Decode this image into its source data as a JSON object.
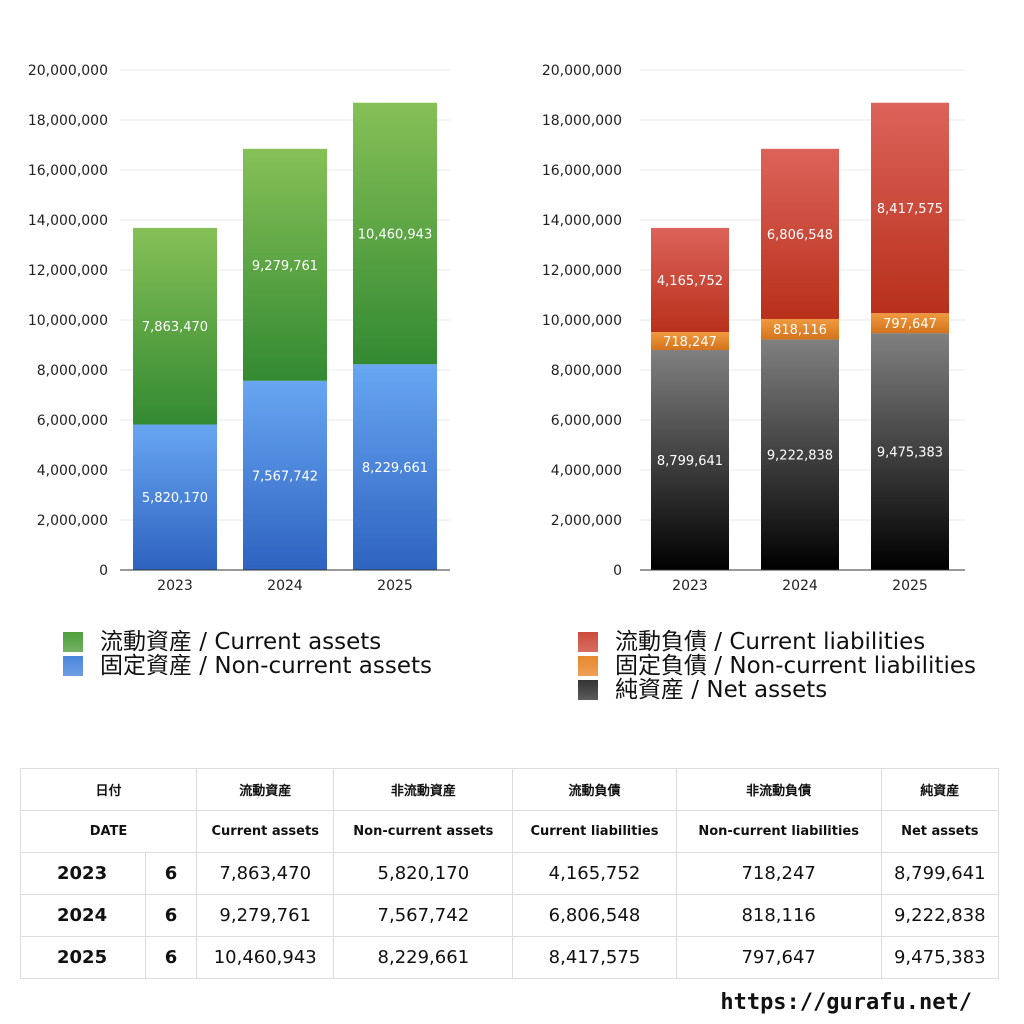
{
  "chart_data": [
    {
      "type": "bar",
      "stacked": true,
      "categories": [
        "2023",
        "2024",
        "2025"
      ],
      "ylim": [
        0,
        20000000
      ],
      "yticks": [
        "0",
        "2,000,000",
        "4,000,000",
        "6,000,000",
        "8,000,000",
        "10,000,000",
        "12,000,000",
        "14,000,000",
        "16,000,000",
        "18,000,000",
        "20,000,000"
      ],
      "grid": true,
      "legend_placement": "bottom",
      "series": [
        {
          "name": "固定資産 / Non-current assets",
          "values": [
            5820170,
            7567742,
            8229661
          ],
          "labels": [
            "5,820,170",
            "7,567,742",
            "8,229,661"
          ],
          "color_top": "#68a6f2",
          "color_bottom": "#2e63c0"
        },
        {
          "name": "流動資産 / Current assets",
          "values": [
            7863470,
            9279761,
            10460943
          ],
          "labels": [
            "7,863,470",
            "9,279,761",
            "10,460,943"
          ],
          "color_top": "#86c057",
          "color_bottom": "#338a32"
        }
      ]
    },
    {
      "type": "bar",
      "stacked": true,
      "categories": [
        "2023",
        "2024",
        "2025"
      ],
      "ylim": [
        0,
        20000000
      ],
      "yticks": [
        "0",
        "2,000,000",
        "4,000,000",
        "6,000,000",
        "8,000,000",
        "10,000,000",
        "12,000,000",
        "14,000,000",
        "16,000,000",
        "18,000,000",
        "20,000,000"
      ],
      "grid": true,
      "legend_placement": "bottom",
      "series": [
        {
          "name": "純資産 / Net assets",
          "values": [
            8799641,
            9222838,
            9475383
          ],
          "labels": [
            "8,799,641",
            "9,222,838",
            "9,475,383"
          ],
          "color_top": "#808080",
          "color_bottom": "#000000"
        },
        {
          "name": "固定負債 / Non-current liabilities",
          "values": [
            718247,
            818116,
            797647
          ],
          "labels": [
            "718,247",
            "818,116",
            "797,647"
          ],
          "color_top": "#f09a40",
          "color_bottom": "#d4731c"
        },
        {
          "name": "流動負債 / Current liabilities",
          "values": [
            4165752,
            6806548,
            8417575
          ],
          "labels": [
            "4,165,752",
            "6,806,548",
            "8,417,575"
          ],
          "color_top": "#dc635a",
          "color_bottom": "#b8301b"
        }
      ]
    }
  ],
  "legend_left": [
    {
      "label": "流動資産 / Current assets",
      "color": "#4f9e3c"
    },
    {
      "label": "固定資産 / Non-current assets",
      "color": "#4a85dc"
    }
  ],
  "legend_right": [
    {
      "label": "流動負債 / Current liabilities",
      "color": "#cc4a3a"
    },
    {
      "label": "固定負債 / Non-current liabilities",
      "color": "#e8882e"
    },
    {
      "label": "純資産 / Net assets",
      "color": "#333333"
    }
  ],
  "table": {
    "header_jp": [
      "日付",
      "流動資産",
      "非流動資産",
      "流動負債",
      "非流動負債",
      "純資産"
    ],
    "header_en": [
      "DATE",
      "Current assets",
      "Non-current assets",
      "Current liabilities",
      "Non-current liabilities",
      "Net assets"
    ],
    "rows": [
      {
        "year": "2023",
        "month": "6",
        "cells": [
          "7,863,470",
          "5,820,170",
          "4,165,752",
          "718,247",
          "8,799,641"
        ]
      },
      {
        "year": "2024",
        "month": "6",
        "cells": [
          "9,279,761",
          "7,567,742",
          "6,806,548",
          "818,116",
          "9,222,838"
        ]
      },
      {
        "year": "2025",
        "month": "6",
        "cells": [
          "10,460,943",
          "8,229,661",
          "8,417,575",
          "797,647",
          "9,475,383"
        ]
      }
    ]
  },
  "footer": {
    "url": "https://gurafu.net/"
  }
}
